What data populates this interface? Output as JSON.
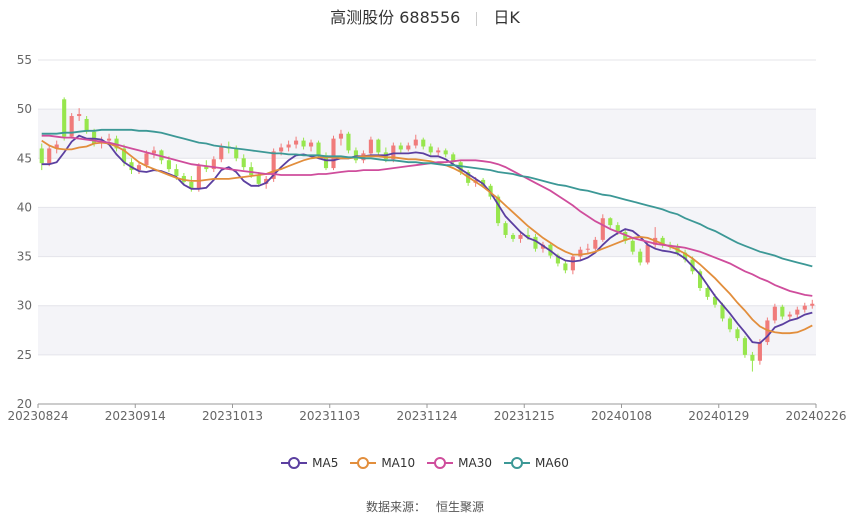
{
  "header": {
    "title": "高测股份 688556",
    "period": "日K"
  },
  "source": {
    "label": "数据来源：",
    "value": "恒生聚源"
  },
  "colors": {
    "up": "#f07b7b",
    "down": "#97e64d",
    "MA5": "#5b3fa0",
    "MA10": "#e28e3c",
    "MA30": "#cf4d9c",
    "MA60": "#3c9896",
    "band": "#f4f4f8",
    "axis": "#666666"
  },
  "chart_data": {
    "type": "candlestick",
    "title": "高测股份 688556 日K",
    "ylim": [
      20,
      55
    ],
    "yticks": [
      20,
      25,
      30,
      35,
      40,
      45,
      50,
      55
    ],
    "xticks": [
      "20230824",
      "20230914",
      "20231013",
      "20231103",
      "20231124",
      "20231215",
      "20240108",
      "20240129",
      "20240226"
    ],
    "grid": true,
    "legend_position": "bottom",
    "candles": [
      [
        46,
        46.5,
        43.8,
        44.5
      ],
      [
        44.5,
        46.3,
        44.2,
        46
      ],
      [
        46,
        46.8,
        45.5,
        46.4
      ],
      [
        51,
        51.2,
        46.8,
        47.2
      ],
      [
        47.2,
        49.6,
        47,
        49.3
      ],
      [
        49.3,
        50.1,
        48.8,
        49.5
      ],
      [
        49,
        49.3,
        47.5,
        47.7
      ],
      [
        47.7,
        48,
        46.2,
        46.5
      ],
      [
        46.5,
        47.2,
        46,
        46.8
      ],
      [
        46.8,
        47.5,
        46.3,
        47
      ],
      [
        47,
        47.3,
        45.7,
        46
      ],
      [
        46,
        46.4,
        44.2,
        44.6
      ],
      [
        44.6,
        45,
        43.4,
        43.8
      ],
      [
        43.8,
        44.6,
        43.4,
        44.3
      ],
      [
        44.3,
        45.8,
        44,
        45.5
      ],
      [
        45.5,
        46.2,
        45,
        45.8
      ],
      [
        45.8,
        45.9,
        44.4,
        44.8
      ],
      [
        44.8,
        45.2,
        43.6,
        43.9
      ],
      [
        43.9,
        44.4,
        42.8,
        43.2
      ],
      [
        43.2,
        43.5,
        42.4,
        42.6
      ],
      [
        42.6,
        43.2,
        41.6,
        41.9
      ],
      [
        41.9,
        44.5,
        41.6,
        44.2
      ],
      [
        44.2,
        44.8,
        43.6,
        43.9
      ],
      [
        43.9,
        45.2,
        43.6,
        44.9
      ],
      [
        44.9,
        46.5,
        44.6,
        46.2
      ],
      [
        46.2,
        46.7,
        45.5,
        46
      ],
      [
        46,
        46.3,
        44.7,
        45
      ],
      [
        45,
        45.4,
        43.8,
        44.1
      ],
      [
        44.1,
        44.6,
        43,
        43.3
      ],
      [
        43.3,
        43.6,
        42.1,
        42.4
      ],
      [
        42.4,
        43.2,
        41.9,
        42.9
      ],
      [
        42.9,
        46,
        42.6,
        45.7
      ],
      [
        45.7,
        46.5,
        45.3,
        46.1
      ],
      [
        46.1,
        46.8,
        45.7,
        46.4
      ],
      [
        46.4,
        47.2,
        46,
        46.8
      ],
      [
        46.8,
        47.1,
        45.9,
        46.2
      ],
      [
        46.2,
        46.9,
        45.7,
        46.6
      ],
      [
        46.6,
        46.8,
        45,
        45.3
      ],
      [
        45.3,
        45.6,
        43.8,
        44
      ],
      [
        44,
        47.3,
        43.8,
        47
      ],
      [
        47,
        47.9,
        46.3,
        47.5
      ],
      [
        47.5,
        47.7,
        45.5,
        45.8
      ],
      [
        45.8,
        46.1,
        44.5,
        44.8
      ],
      [
        44.8,
        45.8,
        44.5,
        45.5
      ],
      [
        45.5,
        47.2,
        45.2,
        46.9
      ],
      [
        46.9,
        47,
        45.3,
        45.6
      ],
      [
        45.6,
        46.1,
        44.6,
        44.9
      ],
      [
        44.9,
        46.6,
        44.6,
        46.3
      ],
      [
        46.3,
        46.6,
        45.5,
        45.9
      ],
      [
        45.9,
        46.6,
        45.7,
        46.3
      ],
      [
        46.3,
        47.4,
        46,
        46.9
      ],
      [
        46.9,
        47.1,
        45.9,
        46.2
      ],
      [
        46.2,
        46.5,
        45.3,
        45.6
      ],
      [
        45.6,
        46.1,
        45.3,
        45.8
      ],
      [
        45.8,
        46,
        45.1,
        45.4
      ],
      [
        45.4,
        45.6,
        44.3,
        44.6
      ],
      [
        44.6,
        44.8,
        43.3,
        43.6
      ],
      [
        43.6,
        43.8,
        42.2,
        42.5
      ],
      [
        42.5,
        43.1,
        42.1,
        42.8
      ],
      [
        42.8,
        43,
        42,
        42.2
      ],
      [
        42.2,
        42.4,
        40.8,
        41.1
      ],
      [
        41.1,
        41.3,
        38.1,
        38.4
      ],
      [
        38.4,
        38.6,
        36.9,
        37.2
      ],
      [
        37.2,
        37.4,
        36.5,
        36.8
      ],
      [
        36.8,
        37.5,
        36.4,
        37.2
      ],
      [
        37.2,
        37.9,
        36.7,
        37
      ],
      [
        37,
        37.3,
        35.5,
        35.8
      ],
      [
        35.8,
        36.5,
        35.4,
        36.2
      ],
      [
        36.2,
        36.3,
        34.8,
        35.1
      ],
      [
        35.1,
        35.3,
        34,
        34.3
      ],
      [
        34.3,
        34.6,
        33.3,
        33.6
      ],
      [
        33.6,
        35.2,
        33.2,
        35
      ],
      [
        35,
        36,
        34.6,
        35.7
      ],
      [
        35.7,
        36.3,
        35.3,
        35.8
      ],
      [
        35.8,
        37,
        35.6,
        36.7
      ],
      [
        36.7,
        39.3,
        36.5,
        38.9
      ],
      [
        38.9,
        39,
        37.9,
        38.2
      ],
      [
        38.2,
        38.5,
        37.2,
        37.5
      ],
      [
        37.5,
        37.8,
        36.3,
        36.6
      ],
      [
        36.6,
        36.9,
        35.2,
        35.5
      ],
      [
        35.5,
        35.8,
        34.1,
        34.4
      ],
      [
        34.4,
        36.5,
        34.2,
        36.2
      ],
      [
        36.2,
        38,
        35.9,
        36.9
      ],
      [
        36.9,
        37.1,
        35.9,
        36.2
      ],
      [
        36.2,
        36.5,
        35.7,
        36
      ],
      [
        36,
        36.3,
        35.1,
        35.4
      ],
      [
        35.4,
        35.7,
        34.4,
        34.7
      ],
      [
        34.7,
        35,
        33.2,
        33.5
      ],
      [
        33.5,
        33.7,
        31.5,
        31.8
      ],
      [
        31.8,
        32,
        30.6,
        30.9
      ],
      [
        30.9,
        31.2,
        29.8,
        30.1
      ],
      [
        30.1,
        30.3,
        28.4,
        28.7
      ],
      [
        28.7,
        28.9,
        27.3,
        27.6
      ],
      [
        27.6,
        27.8,
        26.4,
        26.7
      ],
      [
        26.7,
        26.9,
        24.7,
        25
      ],
      [
        25,
        25.3,
        23.3,
        24.4
      ],
      [
        24.4,
        26.6,
        24,
        26.3
      ],
      [
        26.3,
        28.8,
        26,
        28.5
      ],
      [
        28.5,
        30.2,
        28.2,
        29.9
      ],
      [
        29.9,
        30.1,
        28.6,
        28.9
      ],
      [
        28.9,
        29.4,
        28.5,
        29.1
      ],
      [
        29.1,
        29.9,
        28.8,
        29.6
      ],
      [
        29.6,
        30.3,
        29.3,
        30
      ],
      [
        30,
        30.6,
        29.7,
        30.2
      ]
    ],
    "series": [
      {
        "name": "MA5",
        "values": [
          44.4,
          44.4,
          44.6,
          45.6,
          46.7,
          47.3,
          47,
          47,
          46.9,
          46.4,
          45.4,
          44.6,
          44.1,
          43.7,
          43.6,
          43.8,
          43.7,
          43.4,
          43.1,
          42.3,
          41.9,
          41.9,
          42,
          42.8,
          43.8,
          44.1,
          43.6,
          42.7,
          42.2,
          42.2,
          42.5,
          43.3,
          44.1,
          44.8,
          45.3,
          45.4,
          45.2,
          45,
          44.8,
          44.8,
          45,
          45,
          45.2,
          45.2,
          45.3,
          45.3,
          45.3,
          45.5,
          45.5,
          45.5,
          45.6,
          45.5,
          45.2,
          45.2,
          44.9,
          44.4,
          43.9,
          43.4,
          42.9,
          42.4,
          41.5,
          40.3,
          39.1,
          38.3,
          37.5,
          36.9,
          36.6,
          36.1,
          35.6,
          35,
          34.6,
          34.5,
          34.6,
          34.9,
          35.4,
          36.2,
          36.9,
          37.4,
          37.8,
          37.6,
          37,
          36.2,
          35.8,
          35.6,
          35.5,
          35.3,
          34.8,
          34,
          33.2,
          32.1,
          31,
          30.1,
          29.2,
          28.2,
          27.3,
          26.3,
          26.2,
          26.9,
          27.8,
          28.1,
          28.5,
          28.7,
          29.1,
          29.3
        ]
      },
      {
        "name": "MA10",
        "values": [
          46.8,
          46.3,
          46,
          45.9,
          45.9,
          46.1,
          46.2,
          46.5,
          46.6,
          46.5,
          46.2,
          45.8,
          45.2,
          44.6,
          44.2,
          43.9,
          43.6,
          43.3,
          43,
          42.8,
          42.7,
          42.7,
          42.8,
          42.9,
          42.9,
          42.9,
          43,
          43.1,
          43.2,
          43.3,
          43.4,
          43.7,
          43.9,
          44.2,
          44.5,
          44.8,
          45,
          45.1,
          45.1,
          45.1,
          45,
          45,
          45.1,
          45.2,
          45.2,
          45.2,
          45.1,
          45.1,
          45,
          44.9,
          44.9,
          44.8,
          44.7,
          44.5,
          44.3,
          44,
          43.6,
          43.1,
          42.6,
          42.1,
          41.5,
          40.9,
          40.2,
          39.5,
          38.8,
          38.1,
          37.5,
          36.9,
          36.4,
          35.9,
          35.5,
          35.2,
          35.2,
          35.3,
          35.5,
          35.8,
          36.1,
          36.4,
          36.7,
          36.9,
          37,
          36.9,
          36.6,
          36.3,
          36,
          35.7,
          35.3,
          34.8,
          34.2,
          33.5,
          32.8,
          32,
          31.2,
          30.3,
          29.5,
          28.6,
          27.9,
          27.5,
          27.3,
          27.2,
          27.2,
          27.3,
          27.6,
          28
        ]
      },
      {
        "name": "MA30",
        "values": [
          47.3,
          47.3,
          47.2,
          47.1,
          47.1,
          47,
          46.9,
          46.8,
          46.7,
          46.6,
          46.4,
          46.2,
          46,
          45.8,
          45.6,
          45.4,
          45.2,
          45,
          44.8,
          44.6,
          44.4,
          44.3,
          44.2,
          44.1,
          44,
          43.9,
          43.8,
          43.7,
          43.6,
          43.5,
          43.4,
          43.4,
          43.3,
          43.3,
          43.3,
          43.3,
          43.3,
          43.4,
          43.4,
          43.5,
          43.6,
          43.7,
          43.7,
          43.8,
          43.8,
          43.8,
          43.9,
          44,
          44.1,
          44.2,
          44.3,
          44.4,
          44.5,
          44.6,
          44.6,
          44.7,
          44.8,
          44.8,
          44.8,
          44.7,
          44.6,
          44.4,
          44.1,
          43.7,
          43.3,
          42.9,
          42.5,
          42.1,
          41.7,
          41.2,
          40.7,
          40.2,
          39.6,
          39.1,
          38.6,
          38.2,
          37.8,
          37.5,
          37.2,
          36.9,
          36.7,
          36.5,
          36.3,
          36.2,
          36.1,
          36,
          35.9,
          35.7,
          35.5,
          35.2,
          34.9,
          34.6,
          34.3,
          33.9,
          33.5,
          33.2,
          32.8,
          32.5,
          32.1,
          31.8,
          31.5,
          31.3,
          31.1,
          31
        ]
      },
      {
        "name": "MA60",
        "values": [
          47.5,
          47.5,
          47.5,
          47.6,
          47.6,
          47.7,
          47.8,
          47.8,
          47.9,
          47.9,
          47.9,
          47.9,
          47.9,
          47.8,
          47.8,
          47.7,
          47.6,
          47.4,
          47.2,
          47,
          46.8,
          46.6,
          46.5,
          46.3,
          46.2,
          46.1,
          46,
          45.9,
          45.8,
          45.7,
          45.6,
          45.5,
          45.5,
          45.4,
          45.4,
          45.3,
          45.3,
          45.3,
          45.2,
          45.2,
          45.2,
          45.1,
          45.1,
          45,
          45,
          44.9,
          44.8,
          44.8,
          44.7,
          44.6,
          44.6,
          44.5,
          44.5,
          44.4,
          44.3,
          44.3,
          44.2,
          44.1,
          44,
          43.9,
          43.8,
          43.6,
          43.5,
          43.4,
          43.2,
          43.1,
          42.9,
          42.7,
          42.5,
          42.3,
          42.2,
          42,
          41.8,
          41.7,
          41.5,
          41.3,
          41.2,
          41,
          40.8,
          40.6,
          40.4,
          40.2,
          40,
          39.8,
          39.5,
          39.3,
          38.9,
          38.6,
          38.3,
          37.9,
          37.6,
          37.2,
          36.8,
          36.4,
          36.1,
          35.8,
          35.5,
          35.3,
          35.1,
          34.8,
          34.6,
          34.4,
          34.2,
          34
        ]
      }
    ]
  },
  "legend": [
    {
      "name": "MA5",
      "color": "#5b3fa0"
    },
    {
      "name": "MA10",
      "color": "#e28e3c"
    },
    {
      "name": "MA30",
      "color": "#cf4d9c"
    },
    {
      "name": "MA60",
      "color": "#3c9896"
    }
  ]
}
